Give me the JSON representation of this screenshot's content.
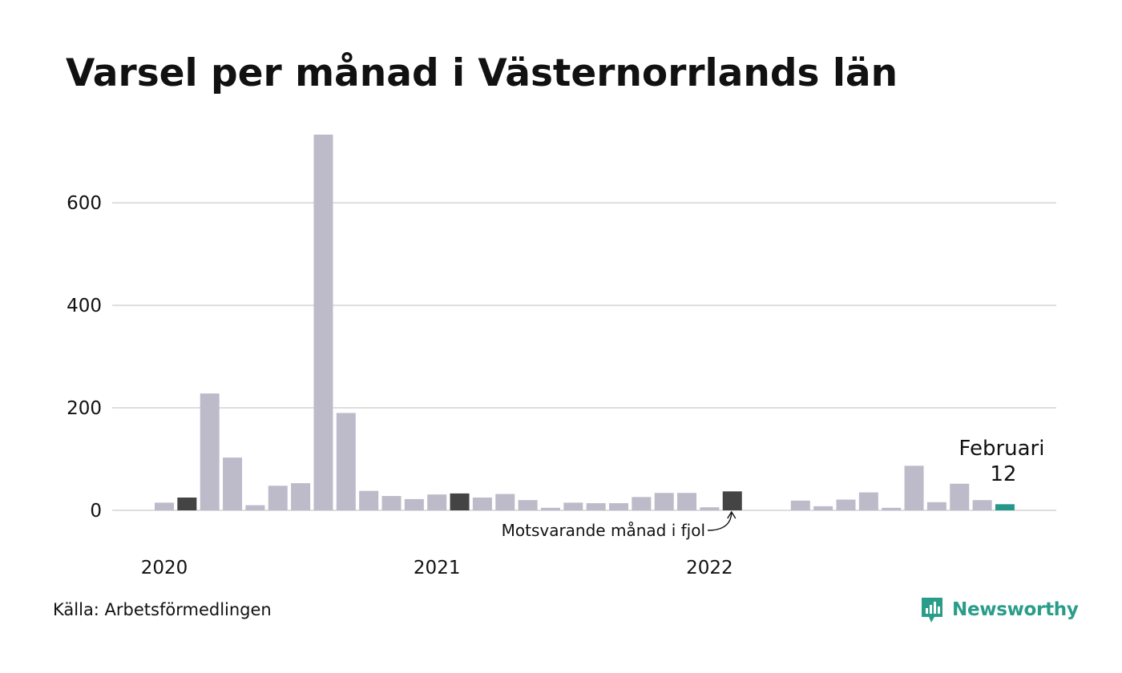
{
  "title": "Varsel per månad i Västernorrlands län",
  "source": "Källa: Arbetsförmedlingen",
  "logo": {
    "text": "Newsworthy",
    "icon": "newsworthy-chart-bubble-icon",
    "color": "#2a9d8a"
  },
  "chart_data": {
    "type": "bar",
    "title": "Varsel per månad i Västernorrlands län",
    "xlabel": "",
    "ylabel": "",
    "ylim": [
      0,
      733
    ],
    "yticks": [
      0,
      200,
      400,
      600
    ],
    "grid": true,
    "xticks": [
      {
        "label": "2020",
        "index": 0
      },
      {
        "label": "2021",
        "index": 12
      },
      {
        "label": "2022",
        "index": 24
      }
    ],
    "colors": {
      "default": "#bdbbc9",
      "highlight": "#444444",
      "current": "#23988a",
      "grid": "#dedede"
    },
    "values": [
      15,
      25,
      228,
      103,
      10,
      48,
      53,
      733,
      190,
      38,
      28,
      22,
      31,
      33,
      25,
      32,
      20,
      5,
      15,
      14,
      14,
      26,
      34,
      34,
      6,
      37,
      null,
      null,
      19,
      8,
      21,
      35,
      5,
      87,
      16,
      52,
      20,
      12
    ],
    "highlight_indices": [
      1,
      13,
      25
    ],
    "current_index": 37,
    "current_label": {
      "month": "Februari",
      "value": "12"
    },
    "annotation": {
      "text": "Motsvarande månad i fjol",
      "target_index": 25
    }
  }
}
